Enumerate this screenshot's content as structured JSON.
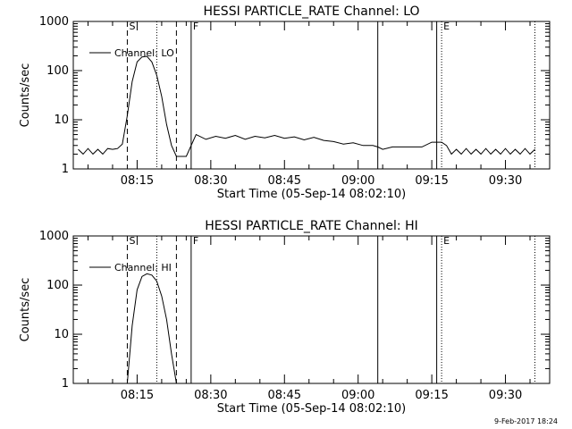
{
  "footer_timestamp": "9-Feb-2017 18:24",
  "chart_data": [
    {
      "type": "line",
      "title": "HESSI PARTICLE_RATE Channel: LO",
      "xlabel": "Start Time (05-Sep-14 08:02:10)",
      "ylabel": "Counts/sec",
      "yscale": "log",
      "ylim": [
        1,
        1000
      ],
      "xlim": [
        "08:02",
        "09:39"
      ],
      "x_ticks": [
        "08:15",
        "08:30",
        "08:45",
        "09:00",
        "09:15",
        "09:30"
      ],
      "y_ticks": [
        "1",
        "10",
        "100",
        "1000"
      ],
      "legend": {
        "label": "Channel: LO",
        "placement": "top-left"
      },
      "markers": [
        {
          "label": "S",
          "time": "08:13",
          "style": "dashed"
        },
        {
          "label": "",
          "time": "08:23",
          "style": "dashed"
        },
        {
          "label": "",
          "time": "08:19",
          "style": "dotted"
        },
        {
          "label": "F",
          "time": "08:26",
          "style": "solid"
        },
        {
          "label": "",
          "time": "09:04",
          "style": "solid"
        },
        {
          "label": "",
          "time": "09:16",
          "style": "solid"
        },
        {
          "label": "E",
          "time": "09:17",
          "style": "dotted"
        },
        {
          "label": "",
          "time": "09:36",
          "style": "dotted"
        }
      ],
      "series": [
        {
          "name": "Channel: LO",
          "points": [
            [
              "08:03",
              2.5
            ],
            [
              "08:04",
              2.0
            ],
            [
              "08:05",
              2.6
            ],
            [
              "08:06",
              2.0
            ],
            [
              "08:07",
              2.5
            ],
            [
              "08:08",
              2.0
            ],
            [
              "08:09",
              2.6
            ],
            [
              "08:10",
              2.5
            ],
            [
              "08:11",
              2.6
            ],
            [
              "08:12",
              3.2
            ],
            [
              "08:13",
              12
            ],
            [
              "08:14",
              60
            ],
            [
              "08:15",
              150
            ],
            [
              "08:16",
              190
            ],
            [
              "08:17",
              195
            ],
            [
              "08:18",
              150
            ],
            [
              "08:19",
              80
            ],
            [
              "08:20",
              30
            ],
            [
              "08:21",
              8
            ],
            [
              "08:22",
              3
            ],
            [
              "08:23",
              1.8
            ],
            [
              "08:24",
              1.8
            ],
            [
              "08:25",
              1.8
            ],
            [
              "08:27",
              5.0
            ],
            [
              "08:29",
              4.0
            ],
            [
              "08:31",
              4.6
            ],
            [
              "08:33",
              4.2
            ],
            [
              "08:35",
              4.8
            ],
            [
              "08:37",
              4.0
            ],
            [
              "08:39",
              4.6
            ],
            [
              "08:41",
              4.3
            ],
            [
              "08:43",
              4.8
            ],
            [
              "08:45",
              4.2
            ],
            [
              "08:47",
              4.5
            ],
            [
              "08:49",
              3.9
            ],
            [
              "08:51",
              4.4
            ],
            [
              "08:53",
              3.8
            ],
            [
              "08:55",
              3.6
            ],
            [
              "08:57",
              3.2
            ],
            [
              "08:59",
              3.4
            ],
            [
              "09:01",
              3.0
            ],
            [
              "09:03",
              3.0
            ],
            [
              "09:04",
              2.8
            ],
            [
              "09:05",
              2.5
            ],
            [
              "09:07",
              2.8
            ],
            [
              "09:09",
              2.8
            ],
            [
              "09:11",
              2.8
            ],
            [
              "09:13",
              2.8
            ],
            [
              "09:15",
              3.5
            ],
            [
              "09:16",
              3.5
            ],
            [
              "09:17",
              3.5
            ],
            [
              "09:18",
              3.0
            ],
            [
              "09:19",
              2.0
            ],
            [
              "09:20",
              2.5
            ],
            [
              "09:21",
              2.0
            ],
            [
              "09:22",
              2.6
            ],
            [
              "09:23",
              2.0
            ],
            [
              "09:24",
              2.5
            ],
            [
              "09:25",
              2.0
            ],
            [
              "09:26",
              2.6
            ],
            [
              "09:27",
              2.0
            ],
            [
              "09:28",
              2.5
            ],
            [
              "09:29",
              2.0
            ],
            [
              "09:30",
              2.6
            ],
            [
              "09:31",
              2.0
            ],
            [
              "09:32",
              2.5
            ],
            [
              "09:33",
              2.0
            ],
            [
              "09:34",
              2.6
            ],
            [
              "09:35",
              2.0
            ],
            [
              "09:36",
              2.5
            ]
          ]
        }
      ]
    },
    {
      "type": "line",
      "title": "HESSI PARTICLE_RATE Channel: HI",
      "xlabel": "Start Time (05-Sep-14 08:02:10)",
      "ylabel": "Counts/sec",
      "yscale": "log",
      "ylim": [
        1,
        1000
      ],
      "xlim": [
        "08:02",
        "09:39"
      ],
      "x_ticks": [
        "08:15",
        "08:30",
        "08:45",
        "09:00",
        "09:15",
        "09:30"
      ],
      "y_ticks": [
        "1",
        "10",
        "100",
        "1000"
      ],
      "legend": {
        "label": "Channel: HI",
        "placement": "top-left"
      },
      "markers": [
        {
          "label": "S",
          "time": "08:13",
          "style": "dashed"
        },
        {
          "label": "",
          "time": "08:23",
          "style": "dashed"
        },
        {
          "label": "",
          "time": "08:19",
          "style": "dotted"
        },
        {
          "label": "F",
          "time": "08:26",
          "style": "solid"
        },
        {
          "label": "",
          "time": "09:04",
          "style": "solid"
        },
        {
          "label": "",
          "time": "09:16",
          "style": "solid"
        },
        {
          "label": "E",
          "time": "09:17",
          "style": "dotted"
        },
        {
          "label": "",
          "time": "09:36",
          "style": "dotted"
        }
      ],
      "series": [
        {
          "name": "Channel: HI",
          "points": [
            [
              "08:13",
              1.0
            ],
            [
              "08:14",
              15
            ],
            [
              "08:15",
              80
            ],
            [
              "08:16",
              150
            ],
            [
              "08:17",
              170
            ],
            [
              "08:18",
              160
            ],
            [
              "08:19",
              120
            ],
            [
              "08:20",
              60
            ],
            [
              "08:21",
              20
            ],
            [
              "08:22",
              4
            ],
            [
              "08:23",
              1.0
            ]
          ]
        }
      ]
    }
  ]
}
